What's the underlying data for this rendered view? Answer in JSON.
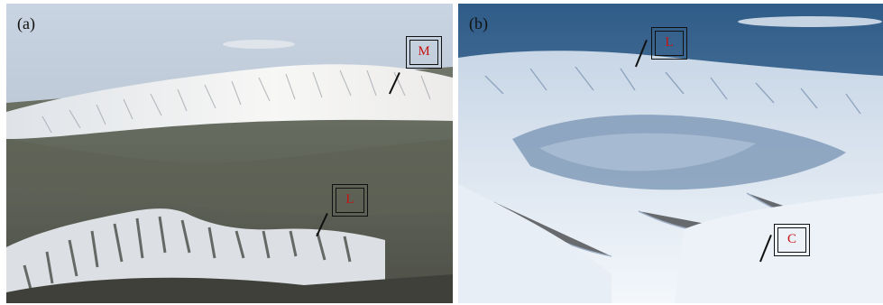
{
  "panels": [
    {
      "label": "(a)",
      "markers": [
        "M",
        "L"
      ]
    },
    {
      "label": "(b)",
      "markers": [
        "L",
        "C"
      ]
    }
  ]
}
